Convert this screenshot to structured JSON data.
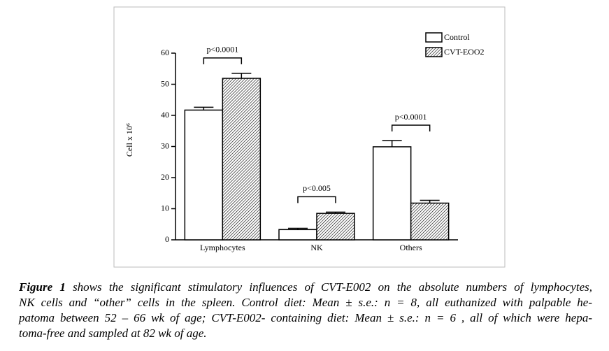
{
  "chart_data": {
    "type": "bar",
    "y_label": "Cell x 10⁶",
    "categories": [
      "Lymphocytes",
      "NK",
      "Others"
    ],
    "series": [
      {
        "name": "Control",
        "color": "#ffffff",
        "values": [
          41.7,
          3.3,
          29.9
        ],
        "errors": [
          0.9,
          0.4,
          2.0
        ]
      },
      {
        "name": "CVT-EOO2",
        "color": "#000000",
        "hatch": true,
        "values": [
          51.9,
          8.5,
          11.8
        ],
        "errors": [
          1.6,
          0.4,
          0.9
        ]
      }
    ],
    "annotations": [
      "p<0.0001",
      "p<0.005",
      "p<0.0001"
    ],
    "ylim": [
      0,
      60
    ],
    "yticks": [
      0,
      10,
      20,
      30,
      40,
      50,
      60
    ],
    "legend": "upper right"
  },
  "caption": {
    "label": "Figure 1",
    "lines": [
      " shows the significant stimulatory influences of CVT-E002 on the absolute numbers of lymphocytes,",
      "NK cells and “other” cells in the spleen. Control diet: Mean ± s.e.:  n = 8, all euthanized with palpable he-",
      "patoma between 52 – 66 wk of age; CVT-E002- containing diet: Mean ± s.e.: n = 6 , all of which were hepa-",
      "toma-free and sampled at 82 wk of age."
    ]
  }
}
